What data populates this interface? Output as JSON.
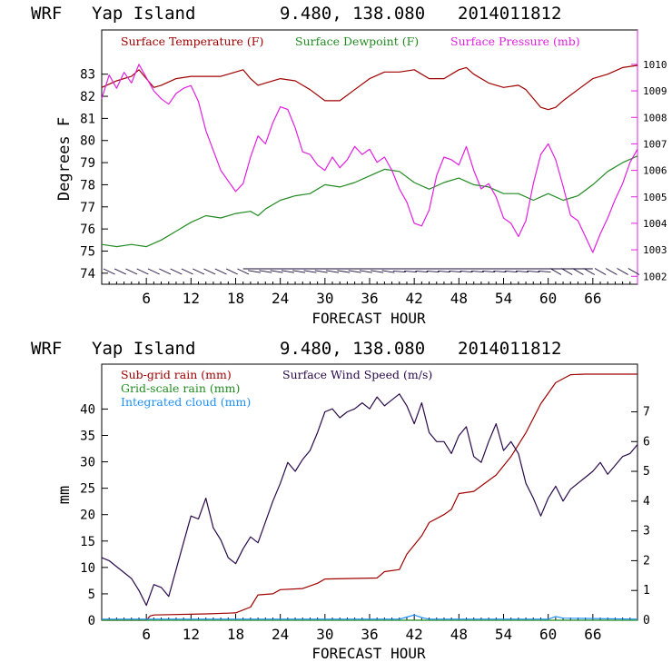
{
  "colors": {
    "temperature": "#a00000",
    "dewpoint": "#228b22",
    "pressure": "#e020e0",
    "subgrid_rain": "#a00000",
    "gridscale_rain": "#228b22",
    "cloud": "#1e90ff",
    "wind": "#2a0a4a",
    "axis": "#000000"
  },
  "chart_data": [
    {
      "type": "line",
      "title_parts": [
        "WRF",
        "Yap Island",
        "9.480, 138.080",
        "2014011812"
      ],
      "xlabel": "FORECAST HOUR",
      "ylabel": "Degrees F",
      "xlim": [
        0,
        72
      ],
      "ylim": [
        73.5,
        85.0
      ],
      "y2lim": [
        1001.7,
        1011.3
      ],
      "x_ticks": [
        "6",
        "12",
        "18",
        "24",
        "30",
        "36",
        "42",
        "48",
        "54",
        "60",
        "66"
      ],
      "y_ticks": [
        "74",
        "75",
        "76",
        "77",
        "78",
        "79",
        "80",
        "81",
        "82",
        "83"
      ],
      "y2_ticks": [
        "1002",
        "1003",
        "1004",
        "1005",
        "1006",
        "1007",
        "1008",
        "1009",
        "1010"
      ],
      "grid": false,
      "legend": [
        "Surface Temperature (F)",
        "Surface Dewpoint (F)",
        "Surface Pressure (mb)"
      ],
      "series": [
        {
          "name": "Surface Temperature (F)",
          "axis": "left",
          "x": [
            0,
            2,
            4,
            5,
            6,
            7,
            8,
            10,
            12,
            14,
            16,
            18,
            19,
            20,
            21,
            22,
            24,
            26,
            27,
            28,
            30,
            32,
            34,
            36,
            38,
            40,
            42,
            44,
            46,
            48,
            49,
            50,
            52,
            54,
            56,
            57,
            58,
            59,
            60,
            61,
            62,
            64,
            66,
            68,
            70,
            72
          ],
          "values": [
            82.4,
            82.7,
            82.9,
            83.2,
            82.8,
            82.4,
            82.5,
            82.8,
            82.9,
            82.9,
            82.9,
            83.1,
            83.2,
            82.8,
            82.5,
            82.6,
            82.8,
            82.7,
            82.5,
            82.3,
            81.8,
            81.8,
            82.3,
            82.8,
            83.1,
            83.1,
            83.2,
            82.8,
            82.8,
            83.2,
            83.3,
            83.0,
            82.6,
            82.4,
            82.5,
            82.3,
            81.9,
            81.5,
            81.4,
            81.5,
            81.8,
            82.3,
            82.8,
            83.0,
            83.3,
            83.4
          ]
        },
        {
          "name": "Surface Dewpoint (F)",
          "axis": "left",
          "x": [
            0,
            2,
            4,
            6,
            8,
            10,
            12,
            14,
            16,
            18,
            20,
            21,
            22,
            24,
            26,
            28,
            30,
            32,
            34,
            36,
            38,
            40,
            42,
            44,
            46,
            48,
            50,
            52,
            54,
            56,
            58,
            60,
            62,
            64,
            66,
            68,
            70,
            72
          ],
          "values": [
            75.3,
            75.2,
            75.3,
            75.2,
            75.5,
            75.9,
            76.3,
            76.6,
            76.5,
            76.7,
            76.8,
            76.6,
            76.9,
            77.3,
            77.5,
            77.6,
            78.0,
            77.9,
            78.1,
            78.4,
            78.7,
            78.6,
            78.1,
            77.8,
            78.1,
            78.3,
            78.0,
            77.9,
            77.6,
            77.6,
            77.3,
            77.6,
            77.3,
            77.5,
            78.0,
            78.6,
            79.0,
            79.3
          ]
        },
        {
          "name": "Surface Pressure (mb)",
          "axis": "right",
          "x": [
            0,
            1,
            2,
            3,
            4,
            5,
            6,
            7,
            8,
            9,
            10,
            11,
            12,
            13,
            14,
            16,
            18,
            19,
            20,
            21,
            22,
            23,
            24,
            25,
            26,
            27,
            28,
            29,
            30,
            31,
            32,
            33,
            34,
            35,
            36,
            37,
            38,
            39,
            40,
            41,
            42,
            43,
            44,
            45,
            46,
            47,
            48,
            49,
            50,
            51,
            52,
            53,
            54,
            55,
            56,
            57,
            58,
            59,
            60,
            61,
            62,
            63,
            64,
            65,
            66,
            67,
            68,
            69,
            70,
            71,
            72
          ],
          "values": [
            1008.7,
            1009.6,
            1009.1,
            1009.7,
            1009.3,
            1010.0,
            1009.5,
            1009.0,
            1008.7,
            1008.5,
            1008.9,
            1009.1,
            1009.2,
            1008.6,
            1007.5,
            1006.0,
            1005.2,
            1005.5,
            1006.5,
            1007.3,
            1007.0,
            1007.8,
            1008.4,
            1008.3,
            1007.6,
            1006.7,
            1006.6,
            1006.2,
            1006.0,
            1006.5,
            1006.1,
            1006.4,
            1006.9,
            1006.6,
            1006.8,
            1006.3,
            1006.5,
            1006.0,
            1005.3,
            1004.8,
            1004.0,
            1003.9,
            1004.5,
            1005.8,
            1006.5,
            1006.4,
            1006.2,
            1006.9,
            1006.0,
            1005.3,
            1005.5,
            1005.0,
            1004.2,
            1004.0,
            1003.5,
            1004.1,
            1005.5,
            1006.6,
            1007.0,
            1006.4,
            1005.4,
            1004.3,
            1004.1,
            1003.5,
            1002.9,
            1003.6,
            1004.2,
            1004.9,
            1005.5,
            1006.3,
            1006.8
          ]
        }
      ],
      "wind_barbs": true
    },
    {
      "type": "line",
      "title_parts": [
        "WRF",
        "Yap Island",
        "9.480, 138.080",
        "2014011812"
      ],
      "xlabel": "FORECAST HOUR",
      "ylabel": "mm",
      "xlim": [
        0,
        72
      ],
      "ylim": [
        0,
        48.5
      ],
      "y2lim": [
        0,
        8.6
      ],
      "x_ticks": [
        "6",
        "12",
        "18",
        "24",
        "30",
        "36",
        "42",
        "48",
        "54",
        "60",
        "66"
      ],
      "y_ticks": [
        "0",
        "5",
        "10",
        "15",
        "20",
        "25",
        "30",
        "35",
        "40"
      ],
      "y2_ticks": [
        "0",
        "1",
        "2",
        "3",
        "4",
        "5",
        "6",
        "7"
      ],
      "grid": false,
      "legend": [
        "Sub-grid rain (mm)",
        "Grid-scale rain (mm)",
        "Integrated cloud (mm)",
        "Surface Wind Speed (m/s)"
      ],
      "series": [
        {
          "name": "Sub-grid rain (mm)",
          "axis": "left",
          "x": [
            0,
            6,
            6.5,
            7,
            14,
            18,
            20,
            21,
            23,
            24,
            27,
            29,
            30,
            37,
            38,
            40,
            41,
            43,
            44,
            46,
            47,
            48,
            50,
            53,
            55,
            57,
            59,
            61,
            63,
            65,
            72
          ],
          "values": [
            0,
            0,
            0.8,
            1.0,
            1.2,
            1.4,
            2.5,
            4.8,
            5.0,
            5.8,
            6.0,
            7.0,
            7.8,
            8.0,
            9.2,
            9.6,
            12.5,
            16.0,
            18.5,
            20.0,
            21.0,
            24.0,
            24.4,
            27.5,
            31.0,
            35.5,
            41.0,
            45.0,
            46.5,
            46.6,
            46.6
          ]
        },
        {
          "name": "Grid-scale rain (mm)",
          "axis": "left",
          "x": [
            0,
            72
          ],
          "values": [
            0,
            0
          ]
        },
        {
          "name": "Integrated cloud (mm)",
          "axis": "left",
          "x": [
            0,
            40,
            41,
            42,
            43,
            44,
            60,
            61,
            62,
            72
          ],
          "values": [
            0.2,
            0.2,
            0.6,
            1.0,
            0.5,
            0.2,
            0.2,
            0.7,
            0.4,
            0.2
          ]
        },
        {
          "name": "Surface Wind Speed (m/s)",
          "axis": "right",
          "x": [
            0,
            1,
            2,
            3,
            4,
            5,
            6,
            7,
            8,
            9,
            10,
            11,
            12,
            13,
            14,
            15,
            16,
            17,
            18,
            19,
            20,
            21,
            22,
            23,
            24,
            25,
            26,
            27,
            28,
            29,
            30,
            31,
            32,
            33,
            34,
            35,
            36,
            37,
            38,
            39,
            40,
            41,
            42,
            43,
            44,
            45,
            46,
            47,
            48,
            49,
            50,
            51,
            52,
            53,
            54,
            55,
            56,
            57,
            58,
            59,
            60,
            61,
            62,
            63,
            64,
            65,
            66,
            67,
            68,
            69,
            70,
            71,
            72
          ],
          "values": [
            2.1,
            2.0,
            1.8,
            1.6,
            1.4,
            1.0,
            0.5,
            1.2,
            1.1,
            0.8,
            1.7,
            2.6,
            3.5,
            3.4,
            4.1,
            3.1,
            2.7,
            2.1,
            1.9,
            2.4,
            2.8,
            2.6,
            3.3,
            4.0,
            4.6,
            5.3,
            5.0,
            5.4,
            5.7,
            6.3,
            7.0,
            7.1,
            6.8,
            7.0,
            7.1,
            7.3,
            7.1,
            7.5,
            7.2,
            7.4,
            7.6,
            7.2,
            6.6,
            7.3,
            6.3,
            6.0,
            6.0,
            5.6,
            6.2,
            6.5,
            5.5,
            5.3,
            6.0,
            6.6,
            5.7,
            6.0,
            5.6,
            4.6,
            4.1,
            3.5,
            4.1,
            4.5,
            4.0,
            4.4,
            4.6,
            4.8,
            5.0,
            5.3,
            4.9,
            5.2,
            5.5,
            5.6,
            5.9
          ]
        }
      ]
    }
  ]
}
